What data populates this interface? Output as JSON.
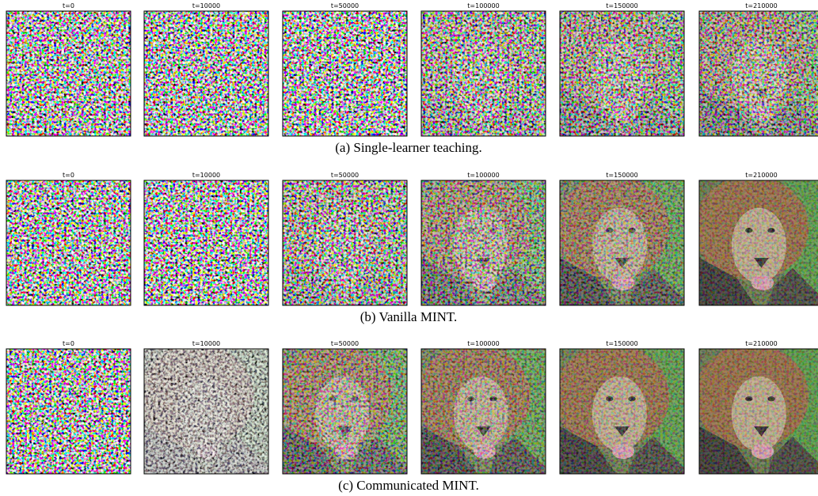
{
  "rows": [
    {
      "caption": "(a) Single-learner teaching.",
      "panels": [
        "t=0",
        "t=10000",
        "t=50000",
        "t=100000",
        "t=150000",
        "t=210000"
      ]
    },
    {
      "caption": "(b) Vanilla MINT.",
      "panels": [
        "t=0",
        "t=10000",
        "t=50000",
        "t=100000",
        "t=150000",
        "t=210000"
      ]
    },
    {
      "caption": "(c) Communicated MINT.",
      "panels": [
        "t=0",
        "t=10000",
        "t=50000",
        "t=100000",
        "t=150000",
        "t=210000"
      ]
    }
  ]
}
